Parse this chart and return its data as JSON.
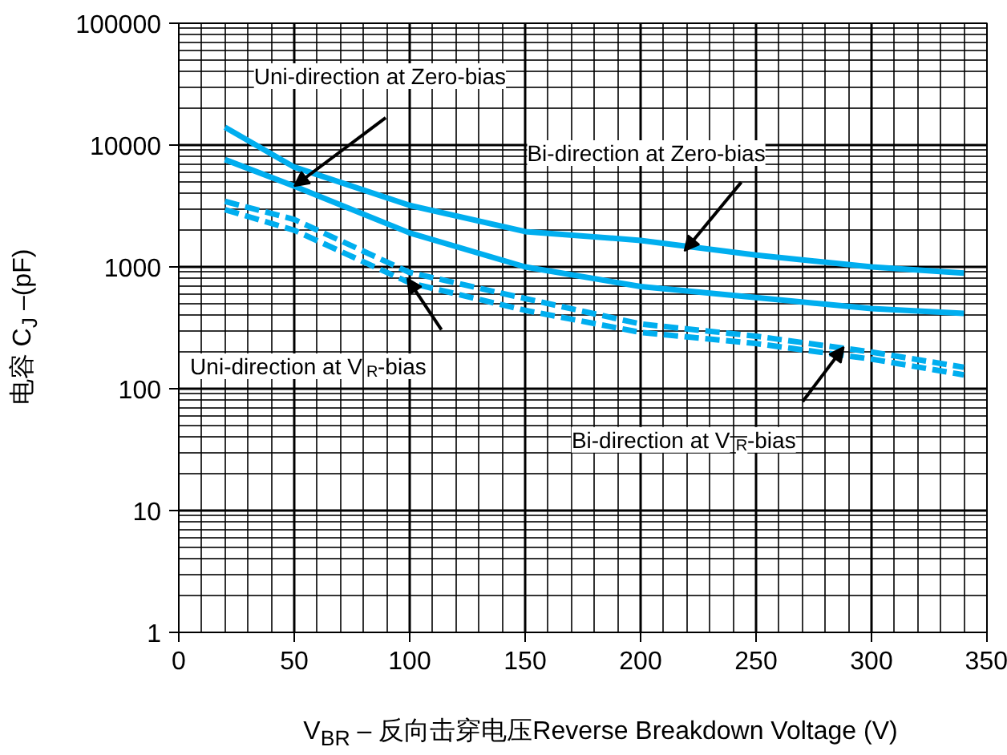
{
  "chart_data": {
    "type": "line",
    "xlabel": "V$_{BR}$ – 反向击穿电压Reverse Breakdown Voltage (V)",
    "ylabel": "电容 C$_{J}$ –(pF)",
    "log": "y",
    "grid": true,
    "marker": "none",
    "xlim": [
      0,
      350
    ],
    "xticks": [
      0,
      50,
      100,
      150,
      200,
      250,
      300,
      350
    ],
    "ylim": [
      1,
      100000
    ],
    "yticks": [
      1,
      10,
      100,
      1000,
      10000,
      100000
    ],
    "x": [
      20,
      50,
      100,
      150,
      200,
      250,
      300,
      340
    ],
    "series": [
      {
        "color": "#00aeef",
        "line_style": "solid",
        "values": [
          14000,
          6600,
          3200,
          1950,
          1650,
          1250,
          1000,
          890
        ]
      },
      {
        "color": "#00aeef",
        "line_style": "solid",
        "values": [
          7600,
          4600,
          1900,
          1000,
          690,
          560,
          455,
          415
        ]
      },
      {
        "color": "#00aeef",
        "line_style": "dashed",
        "values": [
          3450,
          2450,
          900,
          550,
          340,
          270,
          200,
          150
        ]
      },
      {
        "color": "#00aeef",
        "line_style": "dashed",
        "values": [
          2950,
          2000,
          740,
          440,
          290,
          235,
          175,
          130
        ]
      }
    ],
    "annotations": [
      {
        "text": "Uni-direction at Zero-bias",
        "x": 50,
        "y": 4600
      },
      {
        "text": "Bi-direction at Zero-bias",
        "x": 219,
        "y": 1350
      },
      {
        "text": "Uni-direction at V$_{R}$-bias",
        "x": 99,
        "y": 800
      },
      {
        "text": "Bi-direction at V$_{R}$-bias",
        "x": 288,
        "y": 220
      }
    ]
  }
}
